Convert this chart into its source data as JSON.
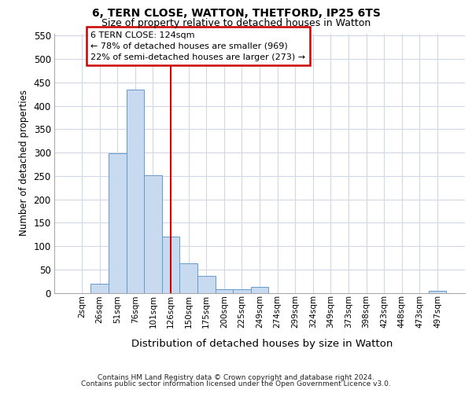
{
  "title1": "6, TERN CLOSE, WATTON, THETFORD, IP25 6TS",
  "title2": "Size of property relative to detached houses in Watton",
  "xlabel": "Distribution of detached houses by size in Watton",
  "ylabel": "Number of detached properties",
  "bar_labels": [
    "2sqm",
    "26sqm",
    "51sqm",
    "76sqm",
    "101sqm",
    "126sqm",
    "150sqm",
    "175sqm",
    "200sqm",
    "225sqm",
    "249sqm",
    "274sqm",
    "299sqm",
    "324sqm",
    "349sqm",
    "373sqm",
    "398sqm",
    "423sqm",
    "448sqm",
    "473sqm",
    "497sqm"
  ],
  "bar_values": [
    0,
    20,
    298,
    435,
    252,
    120,
    63,
    36,
    8,
    8,
    13,
    0,
    0,
    0,
    0,
    0,
    0,
    0,
    0,
    0,
    5
  ],
  "bar_color": "#c8daf0",
  "bar_edge_color": "#6699cc",
  "vline_x_index": 5,
  "vline_color": "#cc0000",
  "annotation_line1": "6 TERN CLOSE: 124sqm",
  "annotation_line2": "← 78% of detached houses are smaller (969)",
  "annotation_line3": "22% of semi-detached houses are larger (273) →",
  "ylim_min": 0,
  "ylim_max": 555,
  "yticks": [
    0,
    50,
    100,
    150,
    200,
    250,
    300,
    350,
    400,
    450,
    500,
    550
  ],
  "footer1": "Contains HM Land Registry data © Crown copyright and database right 2024.",
  "footer2": "Contains public sector information licensed under the Open Government Licence v3.0.",
  "bg_color": "#ffffff",
  "grid_color": "#d0d8e8"
}
